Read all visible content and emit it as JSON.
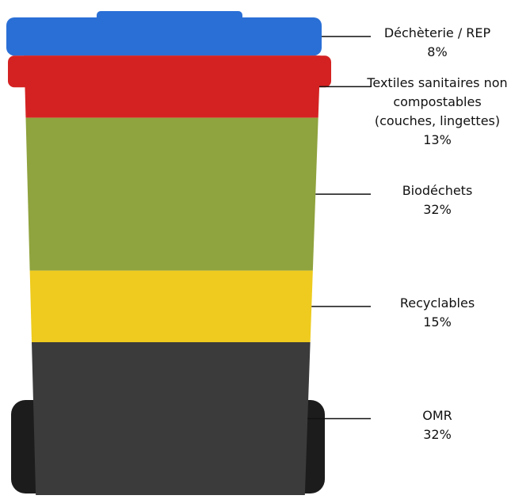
{
  "chart_data": {
    "type": "stacked_bin",
    "categories": [
      "Déchèterie / REP",
      "Textiles sanitaires non compostables (couches, lingettes)",
      "Biodéchets",
      "Recyclables",
      "OMR"
    ],
    "values": [
      8,
      13,
      32,
      15,
      32
    ],
    "value_labels": [
      "8%",
      "13%",
      "32%",
      "15%",
      "32%"
    ],
    "colors": [
      "#2a6fd6",
      "#d42222",
      "#8fa33e",
      "#eecb1e",
      "#3b3b3b"
    ]
  }
}
